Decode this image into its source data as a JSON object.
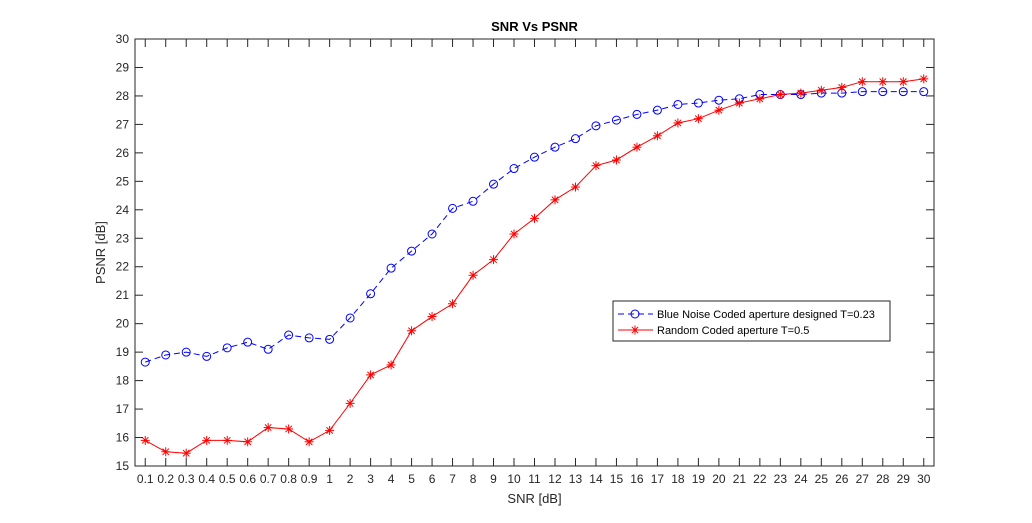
{
  "chart_data": {
    "type": "line",
    "title": "SNR Vs PSNR",
    "xlabel": "SNR [dB]",
    "ylabel": "PSNR [dB]",
    "ylim": [
      15,
      30
    ],
    "yticks": [
      "15",
      "16",
      "17",
      "18",
      "19",
      "20",
      "21",
      "22",
      "23",
      "24",
      "25",
      "26",
      "27",
      "28",
      "29",
      "30"
    ],
    "grid": false,
    "legend_position": "right",
    "categories": [
      "0.1",
      "0.2",
      "0.3",
      "0.4",
      "0.5",
      "0.6",
      "0.7",
      "0.8",
      "0.9",
      "1",
      "2",
      "3",
      "4",
      "5",
      "6",
      "7",
      "8",
      "9",
      "10",
      "11",
      "12",
      "13",
      "14",
      "15",
      "16",
      "17",
      "18",
      "19",
      "20",
      "21",
      "22",
      "23",
      "24",
      "25",
      "26",
      "27",
      "28",
      "29",
      "30"
    ],
    "series": [
      {
        "name": "Blue Noise Coded aperture designed T=0.23",
        "color": "#0000ff",
        "line_style": "dashed",
        "marker": "circle",
        "values": [
          18.65,
          18.9,
          19.0,
          18.85,
          19.15,
          19.35,
          19.1,
          19.6,
          19.5,
          19.45,
          20.2,
          21.05,
          21.95,
          22.55,
          23.15,
          24.05,
          24.3,
          24.9,
          25.45,
          25.85,
          26.2,
          26.5,
          26.95,
          27.15,
          27.35,
          27.5,
          27.7,
          27.75,
          27.85,
          27.9,
          28.05,
          28.05,
          28.05,
          28.1,
          28.1,
          28.15,
          28.15,
          28.15,
          28.15
        ]
      },
      {
        "name": "Random Coded aperture T=0.5",
        "color": "#ff0000",
        "line_style": "solid",
        "marker": "asterisk",
        "values": [
          15.9,
          15.5,
          15.45,
          15.9,
          15.9,
          15.85,
          16.35,
          16.3,
          15.85,
          16.25,
          17.2,
          18.2,
          18.55,
          19.75,
          20.25,
          20.7,
          21.7,
          22.25,
          23.15,
          23.7,
          24.35,
          24.8,
          25.55,
          25.75,
          26.2,
          26.6,
          27.05,
          27.2,
          27.5,
          27.75,
          27.9,
          28.05,
          28.1,
          28.2,
          28.3,
          28.5,
          28.5,
          28.5,
          28.6
        ]
      }
    ]
  }
}
